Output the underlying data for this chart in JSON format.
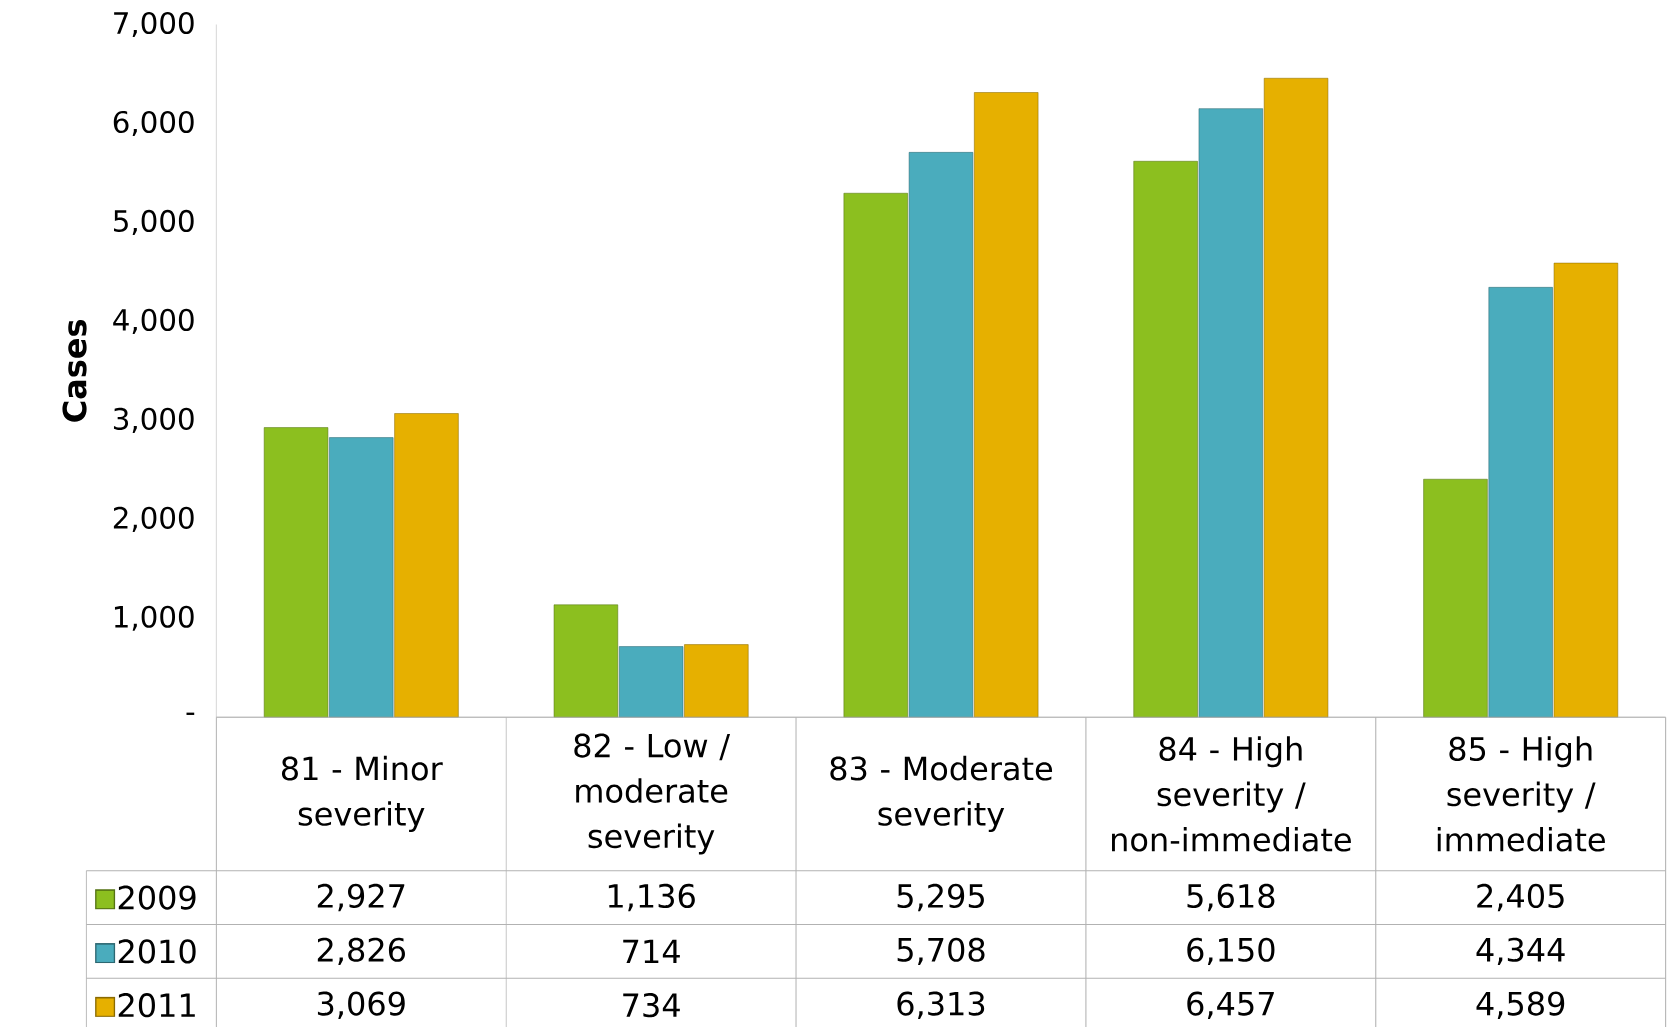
{
  "chart_data": {
    "type": "bar",
    "ylabel": "Cases",
    "categories": [
      "81 - Minor severity",
      "82 - Low / moderate severity",
      "83 - Moderate severity",
      "84 - High severity / non-immediate",
      "85 - High severity / immediate"
    ],
    "series": [
      {
        "name": "2009",
        "color": "#8cbf1f",
        "values": [
          2927,
          1136,
          5295,
          5618,
          2405
        ],
        "value_labels": [
          "2,927",
          "1,136",
          "5,295",
          "5,618",
          "2,405"
        ]
      },
      {
        "name": "2010",
        "color": "#4aacbd",
        "values": [
          2826,
          714,
          5708,
          6150,
          4344
        ],
        "value_labels": [
          "2,826",
          "714",
          "5,708",
          "6,150",
          "4,344"
        ]
      },
      {
        "name": "2011",
        "color": "#e6b000",
        "values": [
          3069,
          734,
          6313,
          6457,
          4589
        ],
        "value_labels": [
          "3,069",
          "734",
          "6,313",
          "6,457",
          "4,589"
        ]
      }
    ],
    "ylim": [
      0,
      7000
    ],
    "yticks": [
      {
        "value": 0,
        "label": "-"
      },
      {
        "value": 1000,
        "label": "1,000"
      },
      {
        "value": 2000,
        "label": "2,000"
      },
      {
        "value": 3000,
        "label": "3,000"
      },
      {
        "value": 4000,
        "label": "4,000"
      },
      {
        "value": 5000,
        "label": "5,000"
      },
      {
        "value": 6000,
        "label": "6,000"
      },
      {
        "value": 7000,
        "label": "7,000"
      }
    ],
    "grid": false,
    "legend": "bottom"
  }
}
